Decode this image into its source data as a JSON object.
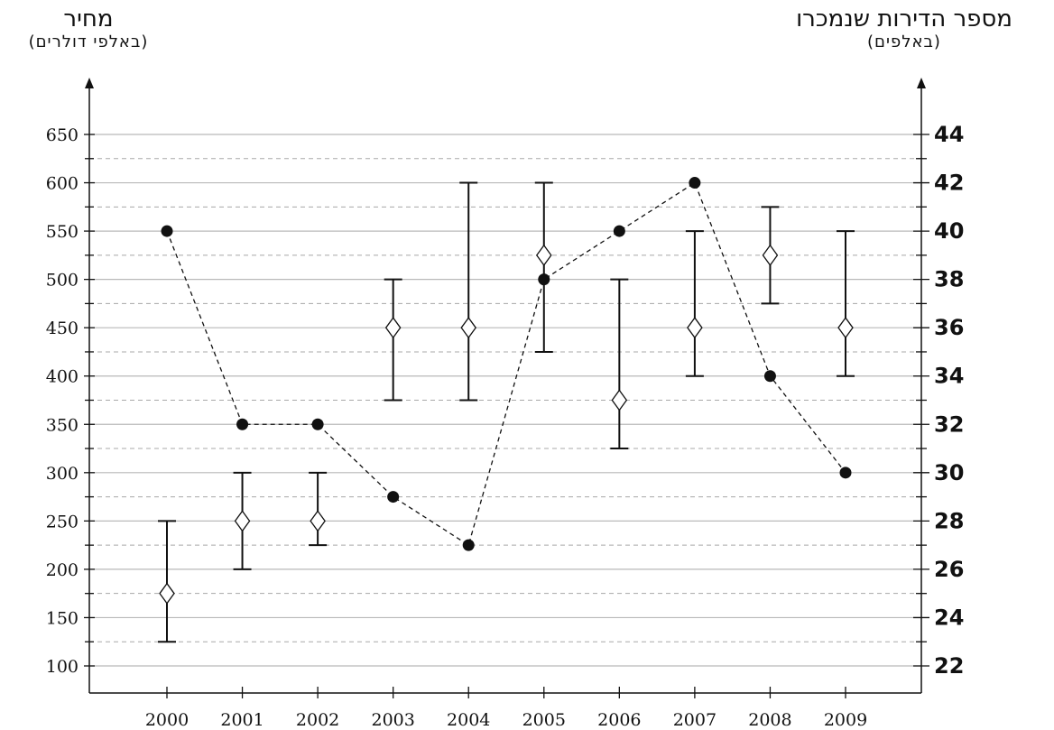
{
  "chart_data": {
    "type": "scatter",
    "y_left_label": "מחיר",
    "y_left_unit": "(באלפי דולרים)",
    "y_right_label": "מספר הדירות שנמכרו",
    "y_right_unit": "(באלפים)",
    "x": [
      2000,
      2001,
      2002,
      2003,
      2004,
      2005,
      2006,
      2007,
      2008,
      2009
    ],
    "x_tick_labels": [
      "2000",
      "2001",
      "2002",
      "2003",
      "2004",
      "2005",
      "2006",
      "2007",
      "2008",
      "2009"
    ],
    "y_left_ticks": [
      "100",
      "150",
      "200",
      "250",
      "300",
      "350",
      "400",
      "450",
      "500",
      "550",
      "600",
      "650"
    ],
    "y_right_ticks": [
      "22",
      "24",
      "26",
      "28",
      "30",
      "32",
      "34",
      "36",
      "38",
      "40",
      "42",
      "44"
    ],
    "ylim_left": [
      100,
      650
    ],
    "ylim_right": [
      22,
      44
    ],
    "grid": true,
    "series": [
      {
        "kind": "price_range",
        "axis": "left",
        "low": [
          125,
          200,
          225,
          375,
          375,
          425,
          325,
          400,
          475,
          400
        ],
        "high": [
          250,
          300,
          300,
          500,
          600,
          600,
          500,
          550,
          575,
          550
        ],
        "mid": [
          175,
          250,
          250,
          450,
          450,
          525,
          375,
          450,
          525,
          450
        ]
      },
      {
        "kind": "apartments_sold",
        "axis": "right",
        "values": [
          40,
          32,
          32,
          29,
          27,
          38,
          40,
          42,
          34,
          30
        ]
      }
    ]
  }
}
